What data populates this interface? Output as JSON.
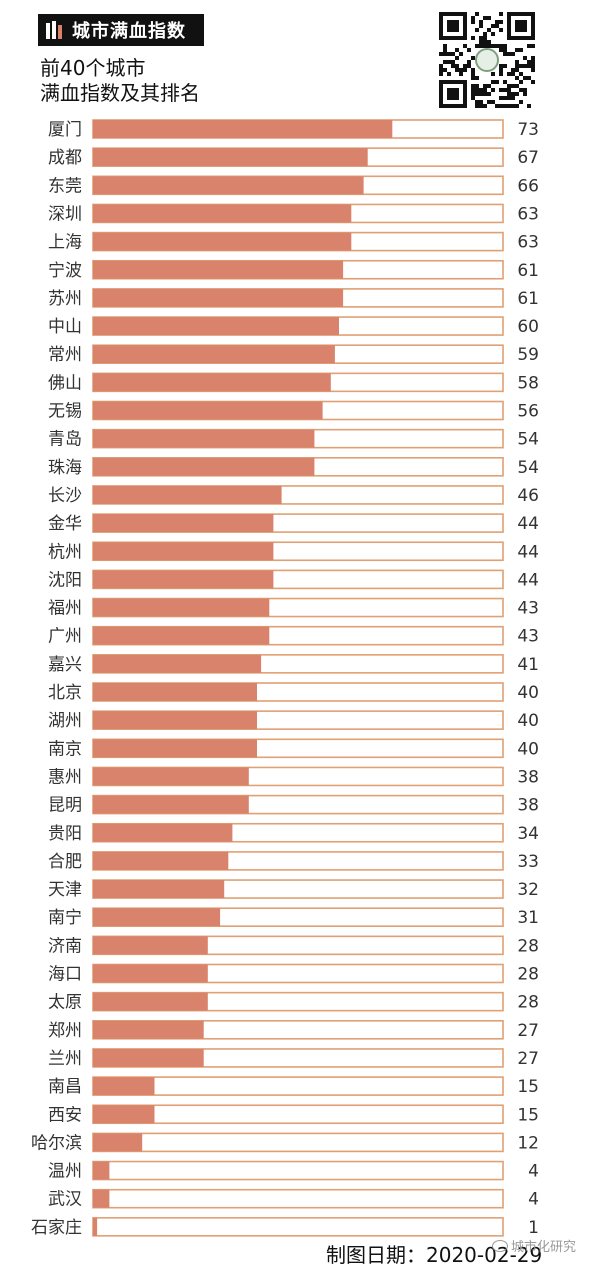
{
  "header": {
    "badge_label": "城市满血指数",
    "badge_icon": "bar-chart-icon"
  },
  "qr_code": {
    "icon": "qr-code-icon"
  },
  "footer": {
    "date_text": "制图日期：2020-02-29",
    "watermark": "城市化研究",
    "watermark_icon": "wechat-icon"
  },
  "chart_data": {
    "type": "bar",
    "orientation": "horizontal",
    "title": "前40个城市",
    "subtitle": "满血指数及其排名",
    "xlim": [
      0,
      100
    ],
    "grid": false,
    "colors": {
      "bar": "#d9826c",
      "track_border": "#e0a072"
    },
    "categories": [
      "厦门",
      "成都",
      "东莞",
      "深圳",
      "上海",
      "宁波",
      "苏州",
      "中山",
      "常州",
      "佛山",
      "无锡",
      "青岛",
      "珠海",
      "长沙",
      "金华",
      "杭州",
      "沈阳",
      "福州",
      "广州",
      "嘉兴",
      "北京",
      "湖州",
      "南京",
      "惠州",
      "昆明",
      "贵阳",
      "合肥",
      "天津",
      "南宁",
      "济南",
      "海口",
      "太原",
      "郑州",
      "兰州",
      "南昌",
      "西安",
      "哈尔滨",
      "温州",
      "武汉",
      "石家庄"
    ],
    "values": [
      73,
      67,
      66,
      63,
      63,
      61,
      61,
      60,
      59,
      58,
      56,
      54,
      54,
      46,
      44,
      44,
      44,
      43,
      43,
      41,
      40,
      40,
      40,
      38,
      38,
      34,
      33,
      32,
      31,
      28,
      28,
      28,
      27,
      27,
      15,
      15,
      12,
      4,
      4,
      1
    ]
  }
}
